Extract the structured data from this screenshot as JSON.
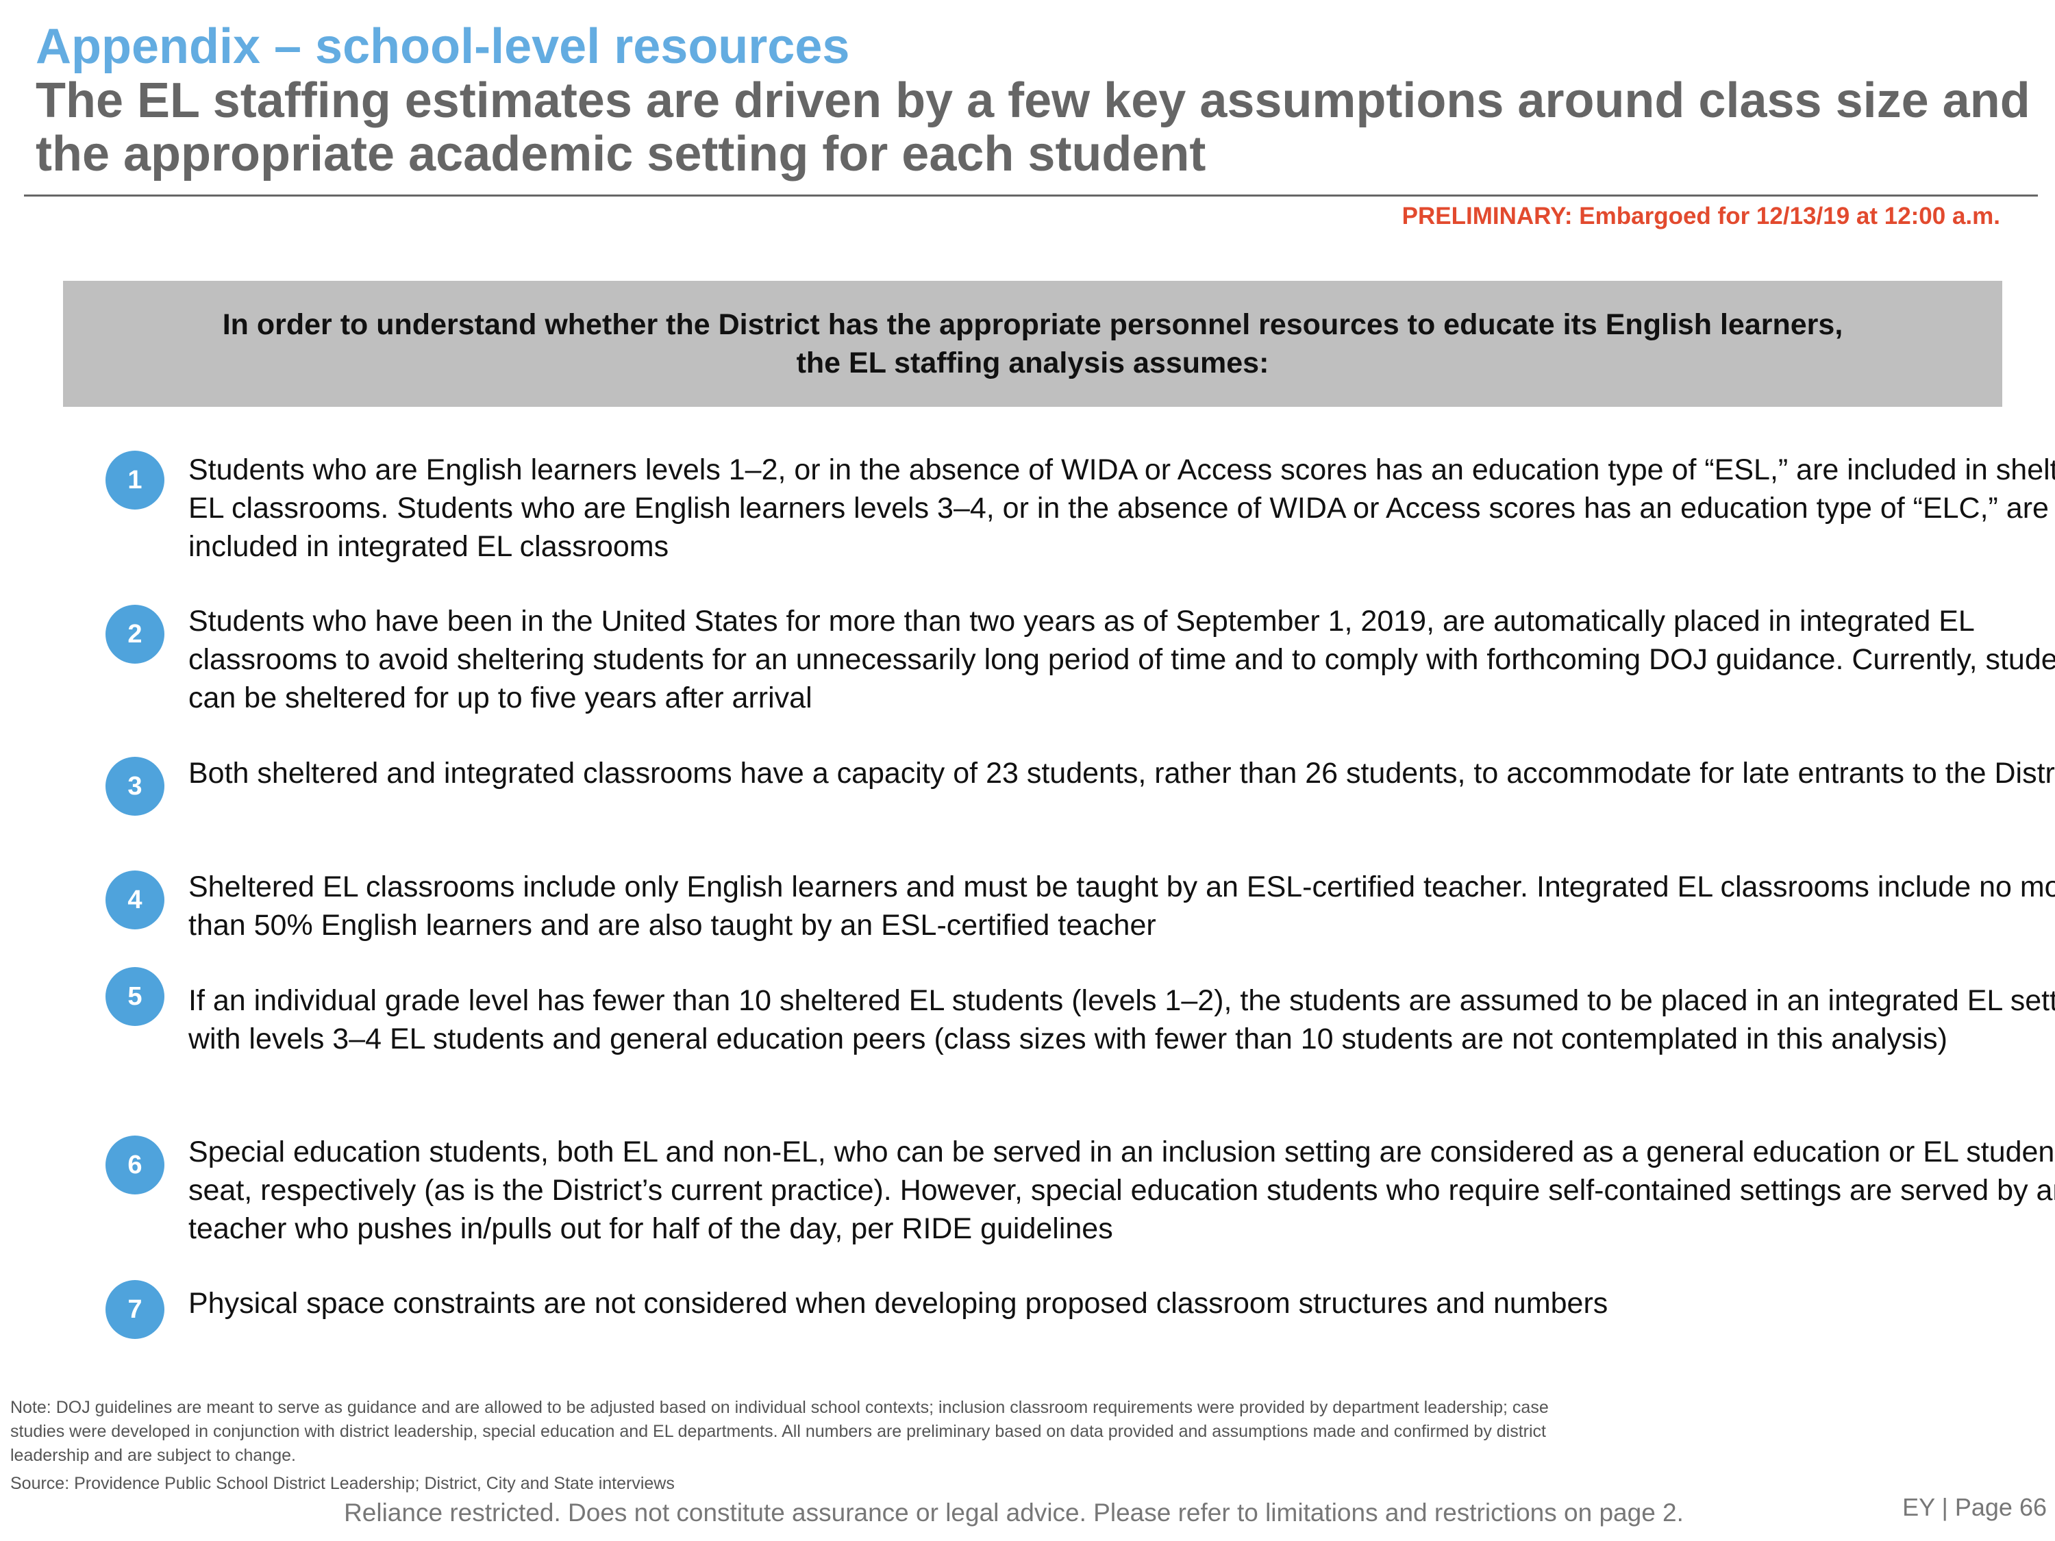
{
  "header": {
    "section": "Appendix – school-level resources",
    "title": "The EL staffing estimates are driven by a few key assumptions around class size and the appropriate academic setting for each student",
    "preliminary": "PRELIMINARY: Embargoed for 12/13/19 at 12:00 a.m."
  },
  "callout": {
    "line1": "In order to understand whether the District has the appropriate personnel resources to educate its English learners,",
    "line2": "the EL staffing analysis assumes:"
  },
  "items": [
    {
      "number": "1",
      "text": "Students who are English learners levels 1–2, or in the absence of WIDA or Access scores has an education type of “ESL,” are included in sheltered EL classrooms. Students who are English learners levels 3–4, or in the absence of WIDA or Access scores has an education type of “ELC,” are included in integrated EL classrooms"
    },
    {
      "number": "2",
      "text": "Students who have been in the United States for more than two years as of September 1, 2019, are automatically placed in integrated EL classrooms to avoid sheltering students for an unnecessarily long period of time and to comply with forthcoming DOJ guidance. Currently, students can be sheltered for up to five years after arrival"
    },
    {
      "number": "3",
      "text": "Both sheltered and integrated classrooms have a capacity of 23 students, rather than 26 students, to accommodate for late entrants to the District"
    },
    {
      "number": "4",
      "text": "Sheltered EL classrooms include only English learners and must be taught by an ESL-certified teacher. Integrated EL classrooms include no more than 50% English learners and are also taught by an ESL-certified teacher"
    },
    {
      "number": "5",
      "text": "If an individual grade level has fewer than 10 sheltered EL students (levels 1–2), the students are assumed to be placed in an integrated EL setting with levels 3–4 EL students and general education peers (class sizes with fewer than 10 students are not contemplated in this analysis)"
    },
    {
      "number": "6",
      "text": "Special education students, both EL and non-EL, who can be served in an inclusion setting are considered as a general education or EL student seat, respectively (as is the District’s current practice). However, special education students who require self-contained settings are served by an EL teacher who pushes in/pulls out for half of the day, per RIDE guidelines"
    },
    {
      "number": "7",
      "text": "Physical space constraints are not considered when developing proposed classroom structures and numbers"
    }
  ],
  "footer": {
    "note": "Note: DOJ guidelines are meant to serve as guidance and are allowed to be adjusted based on individual school contexts; inclusion classroom requirements were provided by department leadership; case studies were developed in conjunction with district leadership, special education and EL departments. All numbers are preliminary based on data provided and assumptions made and confirmed by district leadership and are subject to change.",
    "source": "Source: Providence Public School District Leadership; District, City and State interviews",
    "disclaimer": "Reliance restricted. Does not constitute assurance or legal advice. Please refer to limitations and restrictions on page 2.",
    "page": "EY | Page 66"
  },
  "colors": {
    "accent": "#63ace1",
    "bullet": "#4fa3dc",
    "preliminary": "#e24a2e",
    "callout_bg": "#bfbfbf"
  }
}
